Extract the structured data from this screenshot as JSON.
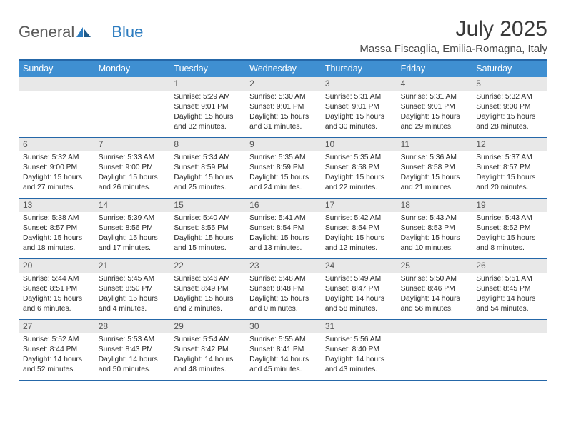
{
  "logo": {
    "text1": "General",
    "text2": "Blue"
  },
  "title": "July 2025",
  "location": "Massa Fiscaglia, Emilia-Romagna, Italy",
  "header_bg": "#3f8fd1",
  "border_color": "#2567a8",
  "numrow_bg": "#e8e8e8",
  "daynames": [
    "Sunday",
    "Monday",
    "Tuesday",
    "Wednesday",
    "Thursday",
    "Friday",
    "Saturday"
  ],
  "weeks": [
    [
      null,
      null,
      {
        "n": "1",
        "sr": "5:29 AM",
        "ss": "9:01 PM",
        "dl": "15 hours and 32 minutes."
      },
      {
        "n": "2",
        "sr": "5:30 AM",
        "ss": "9:01 PM",
        "dl": "15 hours and 31 minutes."
      },
      {
        "n": "3",
        "sr": "5:31 AM",
        "ss": "9:01 PM",
        "dl": "15 hours and 30 minutes."
      },
      {
        "n": "4",
        "sr": "5:31 AM",
        "ss": "9:01 PM",
        "dl": "15 hours and 29 minutes."
      },
      {
        "n": "5",
        "sr": "5:32 AM",
        "ss": "9:00 PM",
        "dl": "15 hours and 28 minutes."
      }
    ],
    [
      {
        "n": "6",
        "sr": "5:32 AM",
        "ss": "9:00 PM",
        "dl": "15 hours and 27 minutes."
      },
      {
        "n": "7",
        "sr": "5:33 AM",
        "ss": "9:00 PM",
        "dl": "15 hours and 26 minutes."
      },
      {
        "n": "8",
        "sr": "5:34 AM",
        "ss": "8:59 PM",
        "dl": "15 hours and 25 minutes."
      },
      {
        "n": "9",
        "sr": "5:35 AM",
        "ss": "8:59 PM",
        "dl": "15 hours and 24 minutes."
      },
      {
        "n": "10",
        "sr": "5:35 AM",
        "ss": "8:58 PM",
        "dl": "15 hours and 22 minutes."
      },
      {
        "n": "11",
        "sr": "5:36 AM",
        "ss": "8:58 PM",
        "dl": "15 hours and 21 minutes."
      },
      {
        "n": "12",
        "sr": "5:37 AM",
        "ss": "8:57 PM",
        "dl": "15 hours and 20 minutes."
      }
    ],
    [
      {
        "n": "13",
        "sr": "5:38 AM",
        "ss": "8:57 PM",
        "dl": "15 hours and 18 minutes."
      },
      {
        "n": "14",
        "sr": "5:39 AM",
        "ss": "8:56 PM",
        "dl": "15 hours and 17 minutes."
      },
      {
        "n": "15",
        "sr": "5:40 AM",
        "ss": "8:55 PM",
        "dl": "15 hours and 15 minutes."
      },
      {
        "n": "16",
        "sr": "5:41 AM",
        "ss": "8:54 PM",
        "dl": "15 hours and 13 minutes."
      },
      {
        "n": "17",
        "sr": "5:42 AM",
        "ss": "8:54 PM",
        "dl": "15 hours and 12 minutes."
      },
      {
        "n": "18",
        "sr": "5:43 AM",
        "ss": "8:53 PM",
        "dl": "15 hours and 10 minutes."
      },
      {
        "n": "19",
        "sr": "5:43 AM",
        "ss": "8:52 PM",
        "dl": "15 hours and 8 minutes."
      }
    ],
    [
      {
        "n": "20",
        "sr": "5:44 AM",
        "ss": "8:51 PM",
        "dl": "15 hours and 6 minutes."
      },
      {
        "n": "21",
        "sr": "5:45 AM",
        "ss": "8:50 PM",
        "dl": "15 hours and 4 minutes."
      },
      {
        "n": "22",
        "sr": "5:46 AM",
        "ss": "8:49 PM",
        "dl": "15 hours and 2 minutes."
      },
      {
        "n": "23",
        "sr": "5:48 AM",
        "ss": "8:48 PM",
        "dl": "15 hours and 0 minutes."
      },
      {
        "n": "24",
        "sr": "5:49 AM",
        "ss": "8:47 PM",
        "dl": "14 hours and 58 minutes."
      },
      {
        "n": "25",
        "sr": "5:50 AM",
        "ss": "8:46 PM",
        "dl": "14 hours and 56 minutes."
      },
      {
        "n": "26",
        "sr": "5:51 AM",
        "ss": "8:45 PM",
        "dl": "14 hours and 54 minutes."
      }
    ],
    [
      {
        "n": "27",
        "sr": "5:52 AM",
        "ss": "8:44 PM",
        "dl": "14 hours and 52 minutes."
      },
      {
        "n": "28",
        "sr": "5:53 AM",
        "ss": "8:43 PM",
        "dl": "14 hours and 50 minutes."
      },
      {
        "n": "29",
        "sr": "5:54 AM",
        "ss": "8:42 PM",
        "dl": "14 hours and 48 minutes."
      },
      {
        "n": "30",
        "sr": "5:55 AM",
        "ss": "8:41 PM",
        "dl": "14 hours and 45 minutes."
      },
      {
        "n": "31",
        "sr": "5:56 AM",
        "ss": "8:40 PM",
        "dl": "14 hours and 43 minutes."
      },
      null,
      null
    ]
  ],
  "labels": {
    "sunrise": "Sunrise: ",
    "sunset": "Sunset: ",
    "daylight": "Daylight: "
  }
}
